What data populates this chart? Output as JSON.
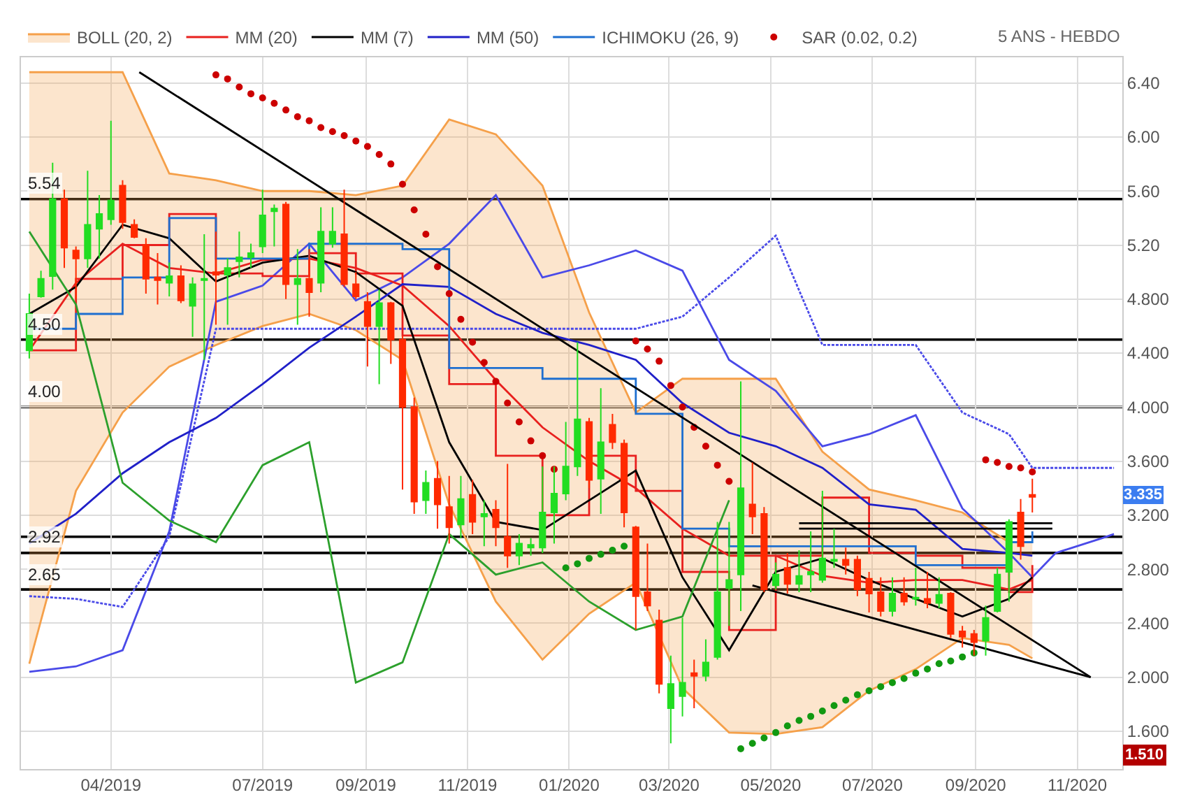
{
  "chart_data": {
    "type": "candlestick",
    "x": [
      "2019-02-11",
      "2019-02-18",
      "2019-02-25",
      "2019-03-04",
      "2019-03-11",
      "2019-03-18",
      "2019-03-25",
      "2019-04-01",
      "2019-04-08",
      "2019-04-15",
      "2019-04-22",
      "2019-04-29",
      "2019-05-06",
      "2019-05-13",
      "2019-05-20",
      "2019-05-27",
      "2019-06-03",
      "2019-06-10",
      "2019-06-17",
      "2019-06-24",
      "2019-07-01",
      "2019-07-08",
      "2019-07-15",
      "2019-07-22",
      "2019-07-29",
      "2019-08-05",
      "2019-08-12",
      "2019-08-19",
      "2019-08-26",
      "2019-09-02",
      "2019-09-09",
      "2019-09-16",
      "2019-09-23",
      "2019-09-30",
      "2019-10-07",
      "2019-10-14",
      "2019-10-21",
      "2019-10-28",
      "2019-11-04",
      "2019-11-11",
      "2019-11-18",
      "2019-11-25",
      "2019-12-02",
      "2019-12-09",
      "2019-12-16",
      "2019-12-23",
      "2019-12-30",
      "2020-01-06",
      "2020-01-13",
      "2020-01-20",
      "2020-01-27",
      "2020-02-03",
      "2020-02-10",
      "2020-02-17",
      "2020-02-24",
      "2020-03-02",
      "2020-03-09",
      "2020-03-16",
      "2020-03-23",
      "2020-03-30",
      "2020-04-06",
      "2020-04-13",
      "2020-04-20",
      "2020-04-27",
      "2020-05-04",
      "2020-05-11",
      "2020-05-18",
      "2020-05-25",
      "2020-06-01",
      "2020-06-08",
      "2020-06-15",
      "2020-06-22",
      "2020-06-29",
      "2020-07-06",
      "2020-07-13",
      "2020-07-20",
      "2020-07-27",
      "2020-08-03",
      "2020-08-10",
      "2020-08-17",
      "2020-08-24",
      "2020-08-31",
      "2020-09-07",
      "2020-09-14",
      "2020-09-21",
      "2020-09-28",
      "2020-10-05"
    ],
    "ohlc": [
      [
        4.42,
        4.84,
        4.36,
        4.69
      ],
      [
        4.82,
        5.01,
        4.81,
        4.95
      ],
      [
        4.97,
        5.81,
        4.87,
        5.54
      ],
      [
        5.54,
        5.61,
        5.03,
        5.18
      ],
      [
        5.16,
        5.19,
        4.8,
        5.1
      ],
      [
        5.1,
        5.75,
        5.03,
        5.35
      ],
      [
        5.32,
        5.57,
        5.1,
        5.43
      ],
      [
        5.39,
        6.12,
        5.35,
        5.53
      ],
      [
        5.64,
        5.68,
        5.32,
        5.37
      ],
      [
        5.35,
        5.39,
        5.25,
        5.26
      ],
      [
        5.2,
        5.25,
        4.84,
        4.95
      ],
      [
        4.96,
        5.14,
        4.76,
        4.94
      ],
      [
        4.92,
        5.07,
        4.82,
        4.97
      ],
      [
        4.97,
        5.05,
        4.77,
        4.79
      ],
      [
        4.75,
        4.96,
        4.52,
        4.91
      ],
      [
        4.94,
        5.28,
        4.35,
        4.95
      ],
      [
        5.0,
        5.3,
        4.61,
        4.98
      ],
      [
        4.98,
        5.1,
        4.61,
        5.03
      ],
      [
        5.08,
        5.3,
        4.96,
        5.11
      ],
      [
        5.11,
        5.21,
        5.03,
        5.14
      ],
      [
        5.19,
        5.61,
        5.14,
        5.42
      ],
      [
        5.45,
        5.5,
        5.19,
        5.47
      ],
      [
        5.5,
        5.52,
        4.8,
        4.91
      ],
      [
        4.91,
        5.17,
        4.61,
        4.95
      ],
      [
        4.95,
        5.17,
        4.67,
        4.85
      ],
      [
        4.92,
        5.48,
        4.85,
        5.3
      ],
      [
        5.21,
        5.48,
        5.18,
        5.3
      ],
      [
        5.28,
        5.61,
        4.89,
        4.91
      ],
      [
        4.91,
        5.0,
        4.8,
        4.82
      ],
      [
        4.78,
        4.85,
        4.3,
        4.6
      ],
      [
        4.6,
        4.87,
        4.17,
        4.77
      ],
      [
        4.77,
        4.78,
        4.32,
        4.5
      ],
      [
        4.5,
        4.53,
        3.39,
        4.0
      ],
      [
        4.0,
        4.07,
        3.21,
        3.3
      ],
      [
        3.31,
        3.53,
        3.21,
        3.44
      ],
      [
        3.47,
        3.6,
        3.1,
        3.28
      ],
      [
        3.26,
        3.49,
        2.99,
        3.11
      ],
      [
        3.13,
        3.49,
        3.03,
        3.32
      ],
      [
        3.35,
        3.46,
        3.06,
        3.15
      ],
      [
        3.19,
        3.31,
        2.97,
        3.21
      ],
      [
        3.24,
        3.31,
        2.97,
        3.11
      ],
      [
        3.04,
        3.58,
        2.81,
        2.9
      ],
      [
        2.9,
        3.06,
        2.83,
        2.99
      ],
      [
        2.96,
        3.03,
        2.9,
        2.98
      ],
      [
        2.96,
        3.56,
        2.92,
        3.22
      ],
      [
        3.22,
        3.56,
        2.99,
        3.36
      ],
      [
        3.36,
        3.89,
        3.31,
        3.56
      ],
      [
        3.56,
        4.48,
        3.49,
        3.91
      ],
      [
        3.89,
        3.92,
        3.4,
        3.46
      ],
      [
        3.47,
        4.14,
        3.21,
        3.74
      ],
      [
        3.87,
        3.95,
        3.69,
        3.74
      ],
      [
        3.73,
        3.76,
        3.11,
        3.22
      ],
      [
        3.11,
        3.12,
        2.35,
        2.6
      ],
      [
        2.63,
        2.99,
        2.49,
        2.53
      ],
      [
        2.42,
        2.5,
        1.88,
        1.95
      ],
      [
        1.77,
        2.16,
        1.51,
        1.95
      ],
      [
        1.86,
        2.44,
        1.71,
        1.96
      ],
      [
        2.03,
        2.13,
        1.77,
        2.01
      ],
      [
        2.01,
        2.28,
        1.97,
        2.11
      ],
      [
        2.15,
        3.15,
        2.13,
        2.63
      ],
      [
        2.66,
        3.15,
        2.38,
        2.72
      ],
      [
        2.76,
        4.19,
        2.49,
        3.4
      ],
      [
        3.28,
        3.59,
        3.06,
        3.19
      ],
      [
        3.21,
        3.26,
        2.63,
        2.65
      ],
      [
        2.68,
        2.85,
        2.65,
        2.76
      ],
      [
        2.81,
        2.92,
        2.62,
        2.69
      ],
      [
        2.69,
        2.94,
        2.63,
        2.75
      ],
      [
        2.76,
        3.08,
        2.63,
        2.78
      ],
      [
        2.72,
        3.38,
        2.7,
        2.88
      ],
      [
        2.86,
        3.1,
        2.81,
        2.87
      ],
      [
        2.87,
        2.96,
        2.76,
        2.83
      ],
      [
        2.87,
        2.9,
        2.6,
        2.65
      ],
      [
        2.73,
        2.78,
        2.48,
        2.62
      ],
      [
        2.63,
        2.74,
        2.45,
        2.49
      ],
      [
        2.49,
        2.74,
        2.45,
        2.62
      ],
      [
        2.62,
        2.74,
        2.53,
        2.56
      ],
      [
        2.58,
        2.81,
        2.53,
        2.59
      ],
      [
        2.58,
        2.78,
        2.51,
        2.55
      ],
      [
        2.55,
        2.74,
        2.51,
        2.61
      ],
      [
        2.62,
        2.63,
        2.29,
        2.32
      ],
      [
        2.34,
        2.38,
        2.22,
        2.3
      ],
      [
        2.32,
        2.35,
        2.16,
        2.26
      ],
      [
        2.27,
        2.53,
        2.16,
        2.44
      ],
      [
        2.49,
        2.81,
        2.48,
        2.76
      ],
      [
        2.78,
        3.17,
        2.56,
        3.15
      ],
      [
        3.22,
        3.32,
        2.87,
        2.97
      ],
      [
        3.35,
        3.47,
        3.22,
        3.335
      ]
    ],
    "colors": [
      "#22dd22",
      "#22dd22",
      "#22dd22",
      "#ff2a00",
      "#ff2a00",
      "#22dd22",
      "#22dd22",
      "#22dd22",
      "#ff2a00",
      "#ff2a00",
      "#ff2a00",
      "#ff2a00",
      "#22dd22",
      "#ff2a00",
      "#22dd22",
      "#22dd22",
      "#ff2a00",
      "#22dd22",
      "#22dd22",
      "#22dd22",
      "#22dd22",
      "#22dd22",
      "#ff2a00",
      "#22dd22",
      "#ff2a00",
      "#22dd22",
      "#22dd22",
      "#ff2a00",
      "#ff2a00",
      "#ff2a00",
      "#22dd22",
      "#ff2a00",
      "#ff2a00",
      "#ff2a00",
      "#22dd22",
      "#ff2a00",
      "#ff2a00",
      "#22dd22",
      "#ff2a00",
      "#22dd22",
      "#ff2a00",
      "#ff2a00",
      "#22dd22",
      "#22dd22",
      "#22dd22",
      "#22dd22",
      "#22dd22",
      "#22dd22",
      "#ff2a00",
      "#22dd22",
      "#ff2a00",
      "#ff2a00",
      "#ff2a00",
      "#ff2a00",
      "#ff2a00",
      "#22dd22",
      "#22dd22",
      "#ff2a00",
      "#22dd22",
      "#22dd22",
      "#22dd22",
      "#22dd22",
      "#ff2a00",
      "#ff2a00",
      "#22dd22",
      "#ff2a00",
      "#22dd22",
      "#22dd22",
      "#22dd22",
      "#22dd22",
      "#ff2a00",
      "#ff2a00",
      "#ff2a00",
      "#ff2a00",
      "#22dd22",
      "#ff2a00",
      "#22dd22",
      "#ff2a00",
      "#22dd22",
      "#ff2a00",
      "#ff2a00",
      "#ff2a00",
      "#22dd22",
      "#22dd22",
      "#22dd22",
      "#ff2a00",
      "#ff2a00"
    ],
    "series": [
      {
        "type": "line",
        "color": "#f5a04a",
        "x": [
          "2019-02-11",
          "2019-03-11",
          "2019-04-08",
          "2019-05-06",
          "2019-06-03",
          "2019-07-01",
          "2019-07-29",
          "2019-08-26",
          "2019-09-23",
          "2019-10-21",
          "2019-11-18",
          "2019-12-16",
          "2020-01-13",
          "2020-02-10",
          "2020-03-09",
          "2020-04-06",
          "2020-05-04",
          "2020-06-01",
          "2020-06-29",
          "2020-07-27",
          "2020-08-24",
          "2020-09-21",
          "2020-10-05"
        ],
        "values": [
          2.1,
          3.38,
          3.96,
          4.3,
          4.46,
          4.6,
          4.69,
          4.57,
          4.35,
          3.28,
          2.56,
          2.13,
          2.47,
          2.7,
          1.92,
          1.59,
          1.58,
          1.63,
          1.9,
          2.06,
          2.29,
          2.24,
          2.14
        ]
      },
      {
        "name": "BOLL (20, 2)",
        "type": "area",
        "color": "#f5a04a",
        "x": [
          "2019-02-11",
          "2019-03-11",
          "2019-04-08",
          "2019-05-06",
          "2019-06-03",
          "2019-07-01",
          "2019-07-29",
          "2019-08-26",
          "2019-09-23",
          "2019-10-21",
          "2019-11-18",
          "2019-12-16",
          "2020-01-13",
          "2020-02-10",
          "2020-03-09",
          "2020-04-06",
          "2020-05-04",
          "2020-06-01",
          "2020-06-29",
          "2020-07-27",
          "2020-08-24",
          "2020-09-21",
          "2020-10-05"
        ],
        "values": [
          6.48,
          6.48,
          6.48,
          5.73,
          5.68,
          5.6,
          5.6,
          5.57,
          5.64,
          6.13,
          6.02,
          5.64,
          4.7,
          3.96,
          4.21,
          4.21,
          4.21,
          3.67,
          3.39,
          3.31,
          3.22,
          3.0,
          3.0
        ]
      },
      {
        "type": "line",
        "color": "#4a4ae8",
        "x": [
          "2019-02-11",
          "2019-03-11",
          "2019-04-08",
          "2019-05-06",
          "2019-06-03",
          "2019-07-01",
          "2019-07-29",
          "2019-08-26",
          "2019-09-23",
          "2019-10-21",
          "2019-11-18",
          "2019-12-16",
          "2020-01-13",
          "2020-02-10",
          "2020-03-09",
          "2020-04-06",
          "2020-05-04",
          "2020-06-01",
          "2020-06-29",
          "2020-07-27",
          "2020-08-24",
          "2020-09-21",
          "2020-10-05",
          "2020-10-19",
          "2020-11-16",
          "2020-11-23"
        ],
        "values": [
          2.04,
          2.08,
          2.2,
          3.08,
          4.78,
          4.9,
          5.21,
          4.79,
          4.96,
          5.21,
          5.57,
          4.96,
          5.05,
          5.16,
          5.01,
          4.35,
          4.12,
          3.71,
          3.8,
          3.94,
          3.25,
          2.92,
          2.74,
          2.92,
          3.03,
          3.06
        ]
      },
      {
        "type": "line",
        "color": "#4a4ae8",
        "line_style": "dashed",
        "x": [
          "2019-02-11",
          "2019-03-11",
          "2019-04-08",
          "2019-05-06",
          "2019-06-03",
          "2019-07-01",
          "2019-07-29",
          "2019-08-26",
          "2019-09-23",
          "2019-10-21",
          "2019-11-18",
          "2019-12-16",
          "2020-01-13",
          "2020-02-10",
          "2020-03-09",
          "2020-04-06",
          "2020-05-04",
          "2020-06-01",
          "2020-06-29",
          "2020-07-27",
          "2020-08-24",
          "2020-09-21",
          "2020-10-05",
          "2020-10-19",
          "2020-11-16",
          "2020-11-23"
        ],
        "values": [
          2.6,
          2.58,
          2.52,
          3.04,
          4.58,
          4.58,
          4.58,
          4.58,
          4.58,
          4.58,
          4.58,
          4.58,
          4.58,
          4.58,
          4.67,
          4.96,
          5.27,
          4.46,
          4.46,
          4.46,
          3.96,
          3.8,
          3.55,
          3.55,
          3.55,
          3.55
        ]
      },
      {
        "name": "MM (20)",
        "type": "line",
        "color": "#e8201e",
        "x": [
          "2019-02-11",
          "2019-03-11",
          "2019-04-08",
          "2019-05-06",
          "2019-06-03",
          "2019-07-01",
          "2019-07-29",
          "2019-08-26",
          "2019-09-23",
          "2019-10-21",
          "2019-11-18",
          "2019-12-16",
          "2020-01-13",
          "2020-02-10",
          "2020-03-09",
          "2020-04-06",
          "2020-05-04",
          "2020-06-01",
          "2020-06-29",
          "2020-07-27",
          "2020-08-24",
          "2020-09-21",
          "2020-10-05"
        ],
        "values": [
          4.42,
          4.92,
          5.21,
          5.03,
          4.99,
          5.09,
          5.1,
          5.03,
          4.9,
          4.6,
          4.2,
          3.85,
          3.6,
          3.4,
          3.1,
          2.9,
          2.9,
          2.75,
          2.7,
          2.72,
          2.72,
          2.65,
          2.72
        ]
      },
      {
        "type": "step",
        "color": "#e8201e",
        "x": [
          "2019-02-11",
          "2019-03-11",
          "2019-04-08",
          "2019-05-06",
          "2019-06-03",
          "2019-07-01",
          "2019-07-29",
          "2019-08-26",
          "2019-09-23",
          "2019-10-21",
          "2019-11-18",
          "2019-12-16",
          "2020-01-13",
          "2020-02-10",
          "2020-03-09",
          "2020-04-06",
          "2020-05-04",
          "2020-06-01",
          "2020-06-29",
          "2020-07-27",
          "2020-08-24",
          "2020-09-21",
          "2020-10-05"
        ],
        "values": [
          4.42,
          4.95,
          5.2,
          5.43,
          4.99,
          4.97,
          5.14,
          4.99,
          4.53,
          4.17,
          3.64,
          3.2,
          3.64,
          3.38,
          2.78,
          2.35,
          2.9,
          3.33,
          2.92,
          2.9,
          2.81,
          2.63,
          2.83
        ]
      },
      {
        "name": "MM (7)",
        "type": "line",
        "color": "#000000",
        "x": [
          "2019-02-11",
          "2019-03-11",
          "2019-04-08",
          "2019-05-06",
          "2019-06-03",
          "2019-07-01",
          "2019-07-29",
          "2019-08-26",
          "2019-09-23",
          "2019-10-21",
          "2019-11-18",
          "2019-12-16",
          "2020-01-13",
          "2020-02-10",
          "2020-03-09",
          "2020-04-06",
          "2020-05-04",
          "2020-06-01",
          "2020-06-29",
          "2020-07-27",
          "2020-08-24",
          "2020-09-21",
          "2020-10-05"
        ],
        "values": [
          4.69,
          4.89,
          5.35,
          5.25,
          4.93,
          5.07,
          5.12,
          5.0,
          4.75,
          3.74,
          3.15,
          3.09,
          3.31,
          3.53,
          2.74,
          2.2,
          2.78,
          2.88,
          2.72,
          2.58,
          2.45,
          2.58,
          2.74
        ]
      },
      {
        "name": "MM (50)",
        "type": "line",
        "color": "#2020c8",
        "x": [
          "2019-02-11",
          "2019-03-11",
          "2019-04-08",
          "2019-05-06",
          "2019-06-03",
          "2019-07-01",
          "2019-07-29",
          "2019-08-26",
          "2019-09-23",
          "2019-10-21",
          "2019-11-18",
          "2019-12-16",
          "2020-01-13",
          "2020-02-10",
          "2020-03-09",
          "2020-04-06",
          "2020-05-04",
          "2020-06-01",
          "2020-06-29",
          "2020-07-27",
          "2020-08-24",
          "2020-09-21",
          "2020-10-05"
        ],
        "values": [
          2.99,
          3.21,
          3.51,
          3.74,
          3.92,
          4.17,
          4.44,
          4.67,
          4.91,
          4.89,
          4.69,
          4.55,
          4.46,
          4.35,
          4.03,
          3.81,
          3.71,
          3.55,
          3.28,
          3.24,
          2.95,
          2.92,
          2.9
        ]
      },
      {
        "name": "ICHIMOKU (26, 9)",
        "type": "step",
        "color": "#1e6fd0",
        "x": [
          "2019-02-11",
          "2019-03-11",
          "2019-04-08",
          "2019-05-06",
          "2019-06-03",
          "2019-07-01",
          "2019-07-29",
          "2019-08-26",
          "2019-09-23",
          "2019-10-21",
          "2019-11-18",
          "2019-12-16",
          "2020-01-13",
          "2020-02-10",
          "2020-03-09",
          "2020-04-06",
          "2020-05-04",
          "2020-06-01",
          "2020-06-29",
          "2020-07-27",
          "2020-08-24",
          "2020-09-21",
          "2020-10-05"
        ],
        "values": [
          4.58,
          4.69,
          4.96,
          5.4,
          5.1,
          5.1,
          5.21,
          5.21,
          5.17,
          4.29,
          4.29,
          4.21,
          4.21,
          3.95,
          3.1,
          2.97,
          2.97,
          2.97,
          2.97,
          2.83,
          2.83,
          3.0,
          3.08
        ]
      },
      {
        "type": "line",
        "color": "#2ca02c",
        "x": [
          "2019-02-11",
          "2019-03-11",
          "2019-04-08",
          "2019-05-06",
          "2019-06-03",
          "2019-07-01",
          "2019-07-29",
          "2019-08-26",
          "2019-09-23",
          "2019-10-21",
          "2019-11-18",
          "2019-12-16",
          "2020-01-13",
          "2020-02-10",
          "2020-03-09",
          "2020-04-06"
        ],
        "values": [
          5.3,
          4.76,
          3.44,
          3.16,
          3.0,
          3.57,
          3.74,
          1.96,
          2.11,
          3.06,
          2.76,
          2.85,
          2.56,
          2.35,
          2.45,
          3.31
        ]
      },
      {
        "name": "SAR (0.02, 0.2)",
        "type": "scatter",
        "color": "#cc0000",
        "marker": "circle",
        "x": [
          "2019-06-03",
          "2019-06-10",
          "2019-06-17",
          "2019-06-24",
          "2019-07-01",
          "2019-07-08",
          "2019-07-15",
          "2019-07-22",
          "2019-07-29",
          "2019-08-05",
          "2019-08-12",
          "2019-08-19",
          "2019-08-26",
          "2019-09-02",
          "2019-09-09",
          "2019-09-16",
          "2019-09-23",
          "2019-09-30",
          "2019-10-07",
          "2019-10-14",
          "2019-10-21",
          "2019-10-28",
          "2019-11-04",
          "2019-11-11",
          "2019-11-18",
          "2019-11-25",
          "2019-12-02",
          "2019-12-09",
          "2019-12-16",
          "2019-12-23",
          "2020-02-10",
          "2020-02-17",
          "2020-02-24",
          "2020-03-02",
          "2020-03-09",
          "2020-03-16",
          "2020-03-23",
          "2020-03-30",
          "2020-04-06",
          "2020-09-07",
          "2020-09-14",
          "2020-09-21",
          "2020-09-28",
          "2020-10-05"
        ],
        "values": [
          6.46,
          6.43,
          6.37,
          6.32,
          6.29,
          6.25,
          6.2,
          6.15,
          6.12,
          6.07,
          6.04,
          6.01,
          5.97,
          5.93,
          5.87,
          5.8,
          5.65,
          5.46,
          5.28,
          5.04,
          4.84,
          4.65,
          4.48,
          4.33,
          4.19,
          4.03,
          3.89,
          3.75,
          3.64,
          3.54,
          4.49,
          4.43,
          4.34,
          4.16,
          4.0,
          3.85,
          3.71,
          3.57,
          3.45,
          3.61,
          3.59,
          3.56,
          3.55,
          3.52
        ]
      },
      {
        "type": "scatter",
        "color": "#119911",
        "marker": "circle",
        "x": [
          "2019-12-30",
          "2020-01-06",
          "2020-01-13",
          "2020-01-20",
          "2020-01-27",
          "2020-02-03",
          "2020-04-13",
          "2020-04-20",
          "2020-04-27",
          "2020-05-04",
          "2020-05-11",
          "2020-05-18",
          "2020-05-25",
          "2020-06-01",
          "2020-06-08",
          "2020-06-15",
          "2020-06-22",
          "2020-06-29",
          "2020-07-06",
          "2020-07-13",
          "2020-07-20",
          "2020-07-27",
          "2020-08-03",
          "2020-08-10",
          "2020-08-17",
          "2020-08-24",
          "2020-08-31"
        ],
        "values": [
          2.81,
          2.84,
          2.88,
          2.91,
          2.94,
          2.97,
          1.47,
          1.51,
          1.55,
          1.59,
          1.64,
          1.68,
          1.71,
          1.75,
          1.79,
          1.83,
          1.87,
          1.9,
          1.93,
          1.96,
          1.99,
          2.03,
          2.06,
          2.1,
          2.12,
          2.15,
          2.18
        ]
      },
      {
        "type": "line",
        "color": "#000000",
        "x": [
          "2019-04-18",
          "2020-11-09"
        ],
        "values": [
          6.48,
          2.0
        ]
      },
      {
        "type": "line",
        "color": "#000000",
        "x": [
          "2020-04-20",
          "2020-11-09"
        ],
        "values": [
          2.68,
          2.0
        ]
      },
      {
        "type": "line",
        "color": "#000000",
        "x": [
          "2020-05-18",
          "2020-10-17"
        ],
        "values": [
          3.14,
          3.14
        ]
      },
      {
        "type": "line",
        "color": "#000000",
        "x": [
          "2020-05-18",
          "2020-10-17"
        ],
        "values": [
          3.1,
          3.1
        ]
      }
    ],
    "ref_lines": [
      {
        "axis": "y",
        "value": 5.54,
        "label": "5.54"
      },
      {
        "axis": "y",
        "value": 4.5,
        "label": "4.50"
      },
      {
        "axis": "y",
        "value": 4.0,
        "label": "4.00"
      },
      {
        "axis": "y",
        "value": 2.92,
        "label": "2.92"
      },
      {
        "axis": "y",
        "value": 2.65,
        "label": "2.65"
      },
      {
        "axis": "y",
        "value": 3.04,
        "label": null
      }
    ],
    "annotations": [
      "5 ANS - HEBDO",
      {
        "text": "3.335",
        "y": 3.335
      },
      "1.510"
    ],
    "xlim": [
      "2019-02-06",
      "2020-11-28"
    ],
    "xticks": [
      {
        "value": "2019-04-01",
        "label": "04/2019"
      },
      {
        "value": "2019-07-01",
        "label": "07/2019"
      },
      {
        "value": "2019-09-01",
        "label": "09/2019"
      },
      {
        "value": "2019-11-01",
        "label": "11/2019"
      },
      {
        "value": "2020-01-01",
        "label": "01/2020"
      },
      {
        "value": "2020-03-01",
        "label": "03/2020"
      },
      {
        "value": "2020-05-01",
        "label": "05/2020"
      },
      {
        "value": "2020-07-01",
        "label": "07/2020"
      },
      {
        "value": "2020-09-01",
        "label": "09/2020"
      },
      {
        "value": "2020-11-01",
        "label": "11/2020"
      }
    ],
    "ylim": [
      1.32,
      6.59
    ],
    "yticks": [
      {
        "value": 6.4,
        "label": "6.40"
      },
      {
        "value": 6.0,
        "label": "6.00"
      },
      {
        "value": 5.6,
        "label": "5.60"
      },
      {
        "value": 5.2,
        "label": "5.20"
      },
      {
        "value": 4.8,
        "label": "4.800"
      },
      {
        "value": 4.4,
        "label": "4.400"
      },
      {
        "value": 4.0,
        "label": "4.000"
      },
      {
        "value": 3.6,
        "label": "3.600"
      },
      {
        "value": 3.2,
        "label": "3.200"
      },
      {
        "value": 2.8,
        "label": "2.800"
      },
      {
        "value": 2.4,
        "label": "2.400"
      },
      {
        "value": 2.0,
        "label": "2.000"
      },
      {
        "value": 1.6,
        "label": "1.600"
      }
    ],
    "grid": true,
    "legend": "top left"
  }
}
